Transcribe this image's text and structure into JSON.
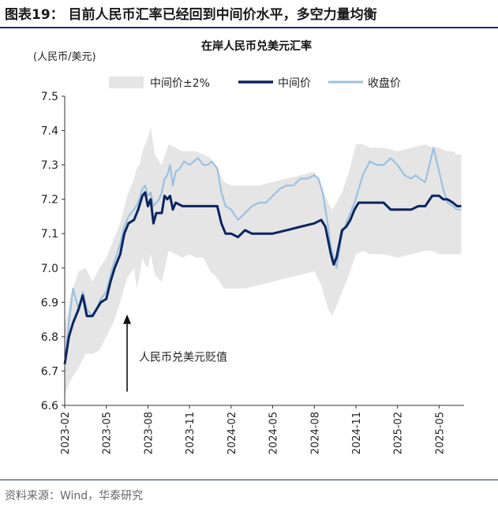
{
  "figure": {
    "title": "图表19：  目前人民币汇率已经回到中间价水平，多空力量均衡",
    "source": "资料来源：Wind，华泰研究"
  },
  "chart_data": {
    "type": "line",
    "title": "在岸人民币兑美元汇率",
    "ylabel": "(人民币/美元)",
    "ylim": [
      6.6,
      7.5
    ],
    "yticks": [
      "6.6",
      "6.7",
      "6.8",
      "6.9",
      "7.0",
      "7.1",
      "7.2",
      "7.3",
      "7.4",
      "7.5"
    ],
    "xlim": [
      0,
      28.8
    ],
    "xticks": [
      "2023-02",
      "2023-05",
      "2023-08",
      "2023-11",
      "2024-02",
      "2024-05",
      "2024-08",
      "2024-11",
      "2025-02",
      "2025-05"
    ],
    "grid": false,
    "legend_position": "top",
    "annotation": {
      "text": "人民币兑美元贬值",
      "x": 4.5,
      "y_from": 6.64,
      "y_to": 6.86
    },
    "band": {
      "name": "中间价±2%",
      "color": "#e5e5e5",
      "x": [
        0,
        0.5,
        1,
        1.5,
        2,
        2.5,
        3,
        3.5,
        4,
        4.5,
        5,
        5.2,
        5.4,
        5.6,
        5.8,
        6,
        6.2,
        6.5,
        7,
        7.5,
        8,
        8.5,
        9,
        9.5,
        10,
        10.5,
        11,
        11.5,
        12,
        13,
        14,
        15,
        16,
        17,
        18,
        18.5,
        19,
        19.3,
        19.6,
        20,
        20.5,
        21,
        21.5,
        22,
        23,
        24,
        25,
        26,
        26.5,
        27,
        27.5,
        28,
        28.3,
        28.6
      ],
      "upper": [
        6.83,
        6.93,
        6.99,
        7.0,
        6.96,
        7.0,
        7.03,
        7.08,
        7.13,
        7.21,
        7.26,
        7.29,
        7.3,
        7.34,
        7.36,
        7.38,
        7.41,
        7.33,
        7.3,
        7.36,
        7.35,
        7.34,
        7.34,
        7.34,
        7.33,
        7.32,
        7.29,
        7.25,
        7.24,
        7.24,
        7.24,
        7.25,
        7.26,
        7.27,
        7.28,
        7.24,
        7.19,
        7.17,
        7.19,
        7.22,
        7.28,
        7.36,
        7.36,
        7.35,
        7.35,
        7.34,
        7.35,
        7.36,
        7.35,
        7.35,
        7.34,
        7.34,
        7.33,
        7.33
      ],
      "lower": [
        6.63,
        6.68,
        6.71,
        6.75,
        6.75,
        6.76,
        6.8,
        6.84,
        6.9,
        6.97,
        7.0,
        6.94,
        6.98,
        7.03,
        7.01,
        7.0,
        7.04,
        6.98,
        6.96,
        7.05,
        7.04,
        7.03,
        7.04,
        7.03,
        7.03,
        6.99,
        6.97,
        6.94,
        6.94,
        6.94,
        6.95,
        6.96,
        6.97,
        6.98,
        6.99,
        6.95,
        6.88,
        6.86,
        6.89,
        6.93,
        6.98,
        7.04,
        7.05,
        7.04,
        7.04,
        7.03,
        7.04,
        7.05,
        7.05,
        7.04,
        7.04,
        7.04,
        7.04,
        7.04
      ]
    },
    "series": [
      {
        "name": "中间价",
        "color": "#0d2460",
        "x": [
          0,
          0.3,
          0.6,
          1,
          1.3,
          1.6,
          2,
          2.3,
          2.6,
          3,
          3.3,
          3.6,
          4,
          4.3,
          4.6,
          5,
          5.3,
          5.6,
          5.8,
          6,
          6.2,
          6.4,
          6.6,
          6.8,
          7,
          7.2,
          7.4,
          7.6,
          7.8,
          8,
          8.5,
          9,
          9.5,
          10,
          10.5,
          11,
          11.3,
          11.6,
          12,
          12.5,
          13,
          13.5,
          14,
          15,
          16,
          17,
          18,
          18.5,
          18.8,
          19,
          19.2,
          19.4,
          19.6,
          19.8,
          20,
          20.3,
          20.6,
          20.9,
          21.2,
          21.5,
          22,
          23,
          23.5,
          24,
          24.5,
          25,
          25.5,
          26,
          26.5,
          27,
          27.3,
          27.6,
          28,
          28.3,
          28.6
        ],
        "values": [
          6.72,
          6.8,
          6.84,
          6.88,
          6.92,
          6.86,
          6.86,
          6.88,
          6.9,
          6.91,
          6.96,
          7.0,
          7.04,
          7.1,
          7.13,
          7.14,
          7.17,
          7.21,
          7.22,
          7.18,
          7.2,
          7.13,
          7.16,
          7.16,
          7.16,
          7.21,
          7.2,
          7.21,
          7.17,
          7.19,
          7.18,
          7.18,
          7.18,
          7.18,
          7.18,
          7.18,
          7.13,
          7.1,
          7.1,
          7.09,
          7.11,
          7.1,
          7.1,
          7.1,
          7.11,
          7.12,
          7.13,
          7.14,
          7.12,
          7.08,
          7.04,
          7.01,
          7.03,
          7.07,
          7.11,
          7.12,
          7.14,
          7.17,
          7.19,
          7.19,
          7.19,
          7.19,
          7.17,
          7.17,
          7.17,
          7.17,
          7.18,
          7.18,
          7.21,
          7.21,
          7.2,
          7.2,
          7.19,
          7.18,
          7.18
        ]
      },
      {
        "name": "收盘价",
        "color": "#9cc1e0",
        "x": [
          0,
          0.3,
          0.6,
          1,
          1.3,
          1.6,
          2,
          2.3,
          2.6,
          3,
          3.3,
          3.6,
          4,
          4.3,
          4.6,
          5,
          5.3,
          5.6,
          5.8,
          6,
          6.2,
          6.4,
          6.6,
          6.8,
          7,
          7.2,
          7.4,
          7.6,
          7.8,
          8,
          8.3,
          8.6,
          9,
          9.3,
          9.6,
          10,
          10.3,
          10.6,
          11,
          11.3,
          11.6,
          12,
          12.5,
          13,
          13.5,
          14,
          14.5,
          15,
          15.5,
          16,
          16.5,
          17,
          17.5,
          18,
          18.3,
          18.6,
          18.8,
          19,
          19.2,
          19.4,
          19.6,
          19.8,
          20,
          20.3,
          20.6,
          20.9,
          21.2,
          21.5,
          22,
          22.5,
          23,
          23.5,
          24,
          24.5,
          25,
          25.3,
          25.6,
          26,
          26.3,
          26.6,
          27,
          27.3,
          27.6,
          28,
          28.3,
          28.6
        ],
        "values": [
          6.72,
          6.84,
          6.94,
          6.88,
          6.93,
          6.88,
          6.86,
          6.88,
          6.91,
          6.93,
          6.98,
          7.02,
          7.07,
          7.12,
          7.15,
          7.17,
          7.19,
          7.23,
          7.24,
          7.21,
          7.22,
          7.18,
          7.19,
          7.2,
          7.22,
          7.26,
          7.27,
          7.3,
          7.24,
          7.28,
          7.29,
          7.31,
          7.3,
          7.31,
          7.32,
          7.3,
          7.3,
          7.31,
          7.29,
          7.22,
          7.18,
          7.17,
          7.14,
          7.16,
          7.18,
          7.19,
          7.19,
          7.21,
          7.23,
          7.24,
          7.24,
          7.26,
          7.26,
          7.27,
          7.26,
          7.22,
          7.17,
          7.12,
          7.06,
          7.03,
          7.0,
          7.05,
          7.1,
          7.13,
          7.16,
          7.19,
          7.23,
          7.27,
          7.31,
          7.3,
          7.3,
          7.32,
          7.3,
          7.27,
          7.26,
          7.27,
          7.26,
          7.25,
          7.3,
          7.35,
          7.28,
          7.23,
          7.19,
          7.18,
          7.17,
          7.17
        ]
      }
    ]
  }
}
